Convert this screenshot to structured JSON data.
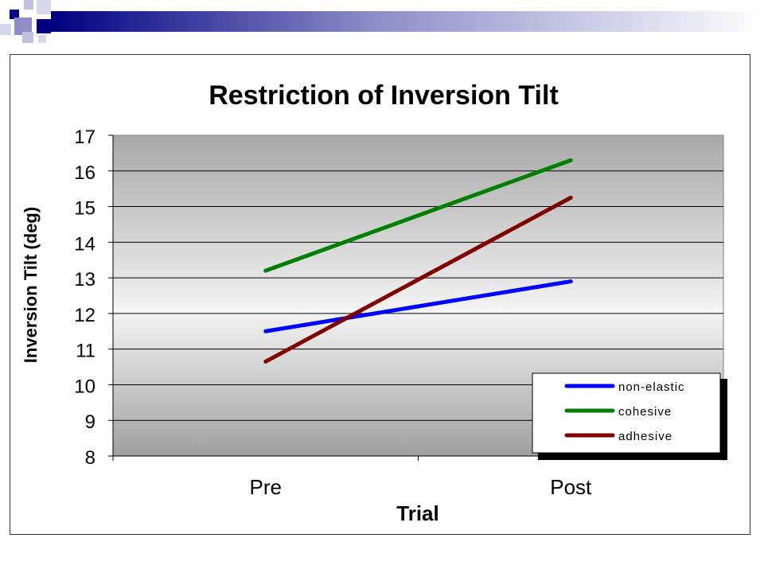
{
  "slide": {
    "banner_colors": [
      "#000080",
      "#8c8cc8",
      "#c0c0e0",
      "#d8d8ec"
    ]
  },
  "chart_data": {
    "type": "line",
    "title": "Restriction of Inversion Tilt",
    "xlabel": "Trial",
    "ylabel": "Inversion Tilt (deg)",
    "categories": [
      "Pre",
      "Post"
    ],
    "ylim": [
      8,
      17
    ],
    "yticks": [
      8,
      9,
      10,
      11,
      12,
      13,
      14,
      15,
      16,
      17
    ],
    "grid": true,
    "legend_position": "bottom-right",
    "series": [
      {
        "name": "non-elastic",
        "values": [
          11.5,
          12.9
        ],
        "color": "#0000ff"
      },
      {
        "name": "cohesive",
        "values": [
          13.2,
          16.3
        ],
        "color": "#008000"
      },
      {
        "name": "adhesive",
        "values": [
          10.65,
          15.25
        ],
        "color": "#800000"
      }
    ]
  }
}
